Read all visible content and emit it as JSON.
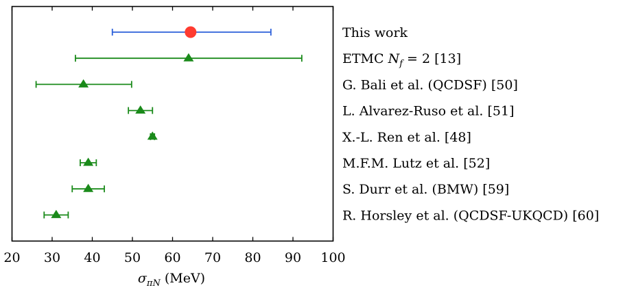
{
  "chart_data": {
    "type": "scatter",
    "title": "",
    "xlabel": "σπN (MeV)",
    "xlabel_parts": {
      "sigma": "σ",
      "sub": "πN",
      "unit": "(MeV)"
    },
    "ylabel": "",
    "xlim": [
      20,
      100
    ],
    "xticks": [
      20,
      30,
      40,
      50,
      60,
      70,
      80,
      90,
      100
    ],
    "grid": false,
    "legend": "labels-right",
    "colors": {
      "this_work_marker": "#ff3b30",
      "this_work_bar": "#2b5fd9",
      "other": "#1a8a1a"
    },
    "entries": [
      {
        "label": "This work",
        "value": 64.5,
        "lower": 45.0,
        "upper": 84.5,
        "marker": "circle",
        "color": "#ff3b30",
        "errorbar_color": "#2b5fd9"
      },
      {
        "label": "ETMC Nf = 2 [13]",
        "label_parts": {
          "pre": "ETMC ",
          "N": "N",
          "f": "f",
          "post": " = 2 [13]"
        },
        "value": 64.0,
        "lower": 35.8,
        "upper": 92.2,
        "marker": "triangle",
        "color": "#1a8a1a"
      },
      {
        "label": "G. Bali et al. (QCDSF) [50]",
        "value": 37.8,
        "lower": 26.0,
        "upper": 49.8,
        "marker": "triangle",
        "color": "#1a8a1a"
      },
      {
        "label": "L. Alvarez-Ruso et al. [51]",
        "value": 52.0,
        "lower": 49.0,
        "upper": 55.0,
        "marker": "triangle",
        "color": "#1a8a1a"
      },
      {
        "label": "X.-L. Ren et al. [48]",
        "value": 55.0,
        "lower": 54.5,
        "upper": 55.5,
        "marker": "triangle",
        "color": "#1a8a1a"
      },
      {
        "label": "M.F.M. Lutz et al. [52]",
        "value": 39.0,
        "lower": 37.0,
        "upper": 41.0,
        "marker": "triangle",
        "color": "#1a8a1a"
      },
      {
        "label": "S. Durr et al. (BMW) [59]",
        "value": 39.0,
        "lower": 35.0,
        "upper": 43.0,
        "marker": "triangle",
        "color": "#1a8a1a"
      },
      {
        "label": "R. Horsley et al. (QCDSF-UKQCD) [60]",
        "value": 31.0,
        "lower": 28.0,
        "upper": 34.0,
        "marker": "triangle",
        "color": "#1a8a1a"
      }
    ]
  }
}
